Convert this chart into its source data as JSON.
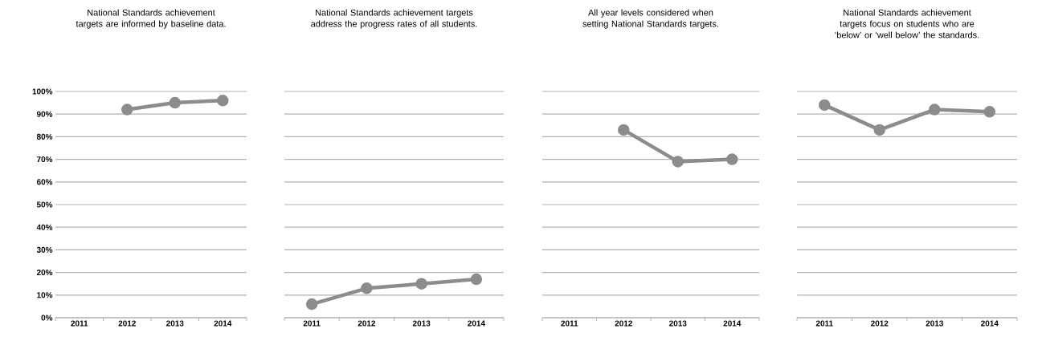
{
  "chart_data": [
    {
      "type": "line",
      "title": "National Standards achievement targets are informed by baseline data.",
      "categories": [
        "2011",
        "2012",
        "2013",
        "2014"
      ],
      "values": [
        null,
        92,
        95,
        96
      ],
      "color": "#8c8c8c",
      "ylim": [
        0,
        100
      ],
      "yticks": [
        {
          "value": 0,
          "label": "0%"
        },
        {
          "value": 10,
          "label": "10%"
        },
        {
          "value": 20,
          "label": "20%"
        },
        {
          "value": 30,
          "label": "30%"
        },
        {
          "value": 40,
          "label": "40%"
        },
        {
          "value": 50,
          "label": "50%"
        },
        {
          "value": 60,
          "label": "60%"
        },
        {
          "value": 70,
          "label": "70%"
        },
        {
          "value": 80,
          "label": "80%"
        },
        {
          "value": 90,
          "label": "90%"
        },
        {
          "value": 100,
          "label": "100%"
        }
      ],
      "grid": "y",
      "marker": "circle"
    },
    {
      "type": "line",
      "title": "National Standards achievement targets address the progress rates of all students.",
      "categories": [
        "2011",
        "2012",
        "2013",
        "2014"
      ],
      "values": [
        6,
        13,
        15,
        17
      ],
      "color": "#8c8c8c",
      "ylim": [
        0,
        100
      ],
      "yticks": [
        {
          "value": 0,
          "label": null
        },
        {
          "value": 10,
          "label": null
        },
        {
          "value": 20,
          "label": null
        },
        {
          "value": 30,
          "label": null
        },
        {
          "value": 40,
          "label": null
        },
        {
          "value": 50,
          "label": null
        },
        {
          "value": 60,
          "label": null
        },
        {
          "value": 70,
          "label": null
        },
        {
          "value": 80,
          "label": null
        },
        {
          "value": 90,
          "label": null
        },
        {
          "value": 100,
          "label": null
        }
      ],
      "tick_labels": "x",
      "grid": "y",
      "marker": "circle"
    },
    {
      "type": "line",
      "title": "All year levels considered when setting National Standards targets.",
      "categories": [
        "2011",
        "2012",
        "2013",
        "2014"
      ],
      "values": [
        null,
        83,
        69,
        70
      ],
      "color": "#8c8c8c",
      "ylim": [
        0,
        100
      ],
      "yticks": [
        {
          "value": 0,
          "label": null
        },
        {
          "value": 10,
          "label": null
        },
        {
          "value": 20,
          "label": null
        },
        {
          "value": 30,
          "label": null
        },
        {
          "value": 40,
          "label": null
        },
        {
          "value": 50,
          "label": null
        },
        {
          "value": 60,
          "label": null
        },
        {
          "value": 70,
          "label": null
        },
        {
          "value": 80,
          "label": null
        },
        {
          "value": 90,
          "label": null
        },
        {
          "value": 100,
          "label": null
        }
      ],
      "tick_labels": "x",
      "grid": "y",
      "marker": "circle"
    },
    {
      "type": "line",
      "title": "National Standards achievement targets focus on students who are ‘below’ or ‘well below’ the standards.",
      "categories": [
        "2011",
        "2012",
        "2013",
        "2014"
      ],
      "values": [
        94,
        83,
        92,
        91
      ],
      "color": "#8c8c8c",
      "ylim": [
        0,
        100
      ],
      "yticks": [
        {
          "value": 0,
          "label": null
        },
        {
          "value": 10,
          "label": null
        },
        {
          "value": 20,
          "label": null
        },
        {
          "value": 30,
          "label": null
        },
        {
          "value": 40,
          "label": null
        },
        {
          "value": 50,
          "label": null
        },
        {
          "value": 60,
          "label": null
        },
        {
          "value": 70,
          "label": null
        },
        {
          "value": 80,
          "label": null
        },
        {
          "value": 90,
          "label": null
        },
        {
          "value": 100,
          "label": null
        }
      ],
      "tick_labels": "x",
      "grid": "y",
      "marker": "circle"
    }
  ]
}
